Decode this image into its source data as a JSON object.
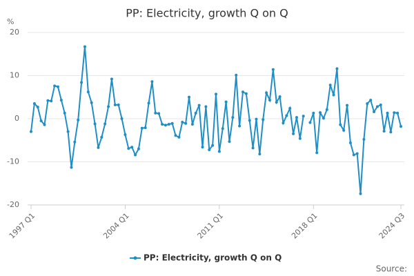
{
  "chart_data": {
    "type": "line",
    "title": "PP: Electricity, growth Q on Q",
    "y_label": "%",
    "source": "Source:",
    "categories": [
      "1997 Q1",
      null,
      null,
      null,
      null,
      null,
      null,
      null,
      null,
      null,
      null,
      null,
      null,
      null,
      null,
      null,
      null,
      null,
      null,
      null,
      null,
      null,
      null,
      null,
      null,
      null,
      null,
      null,
      "2004 Q1",
      null,
      null,
      null,
      null,
      null,
      null,
      null,
      null,
      null,
      null,
      null,
      null,
      null,
      null,
      null,
      null,
      null,
      null,
      null,
      null,
      null,
      null,
      null,
      null,
      null,
      null,
      null,
      "2011 Q1",
      null,
      null,
      null,
      null,
      null,
      null,
      null,
      null,
      null,
      null,
      null,
      null,
      null,
      null,
      null,
      null,
      null,
      null,
      null,
      null,
      null,
      null,
      null,
      null,
      null,
      null,
      null,
      "2018 Q1",
      null,
      null,
      null,
      null,
      null,
      null,
      null,
      null,
      null,
      null,
      null,
      null,
      null,
      null,
      null,
      null,
      null,
      null,
      null,
      null,
      null,
      null,
      null,
      null,
      null,
      "2024 Q3"
    ],
    "series": [
      {
        "name": "PP: Electricity, growth Q on Q",
        "color": "#1f8ec6",
        "values": [
          -3,
          3.5,
          2.7,
          -0.5,
          -1.4,
          4.2,
          4.1,
          7.6,
          7.4,
          4.3,
          1.3,
          -3,
          -11.3,
          -5.4,
          -0.3,
          8.4,
          16.7,
          6.2,
          3.7,
          -1.2,
          -6.7,
          -4.3,
          -1.2,
          2.8,
          9.2,
          3.2,
          3.2,
          0,
          -3.7,
          -6.9,
          -6.6,
          -8.4,
          -7,
          -2.2,
          -2.1,
          3.6,
          8.6,
          1.3,
          1.2,
          -1.3,
          -1.5,
          -1.3,
          -1.1,
          -3.9,
          -4.3,
          -0.8,
          -1.1,
          5,
          -1.3,
          1.3,
          3.1,
          -6.6,
          2.8,
          -7.2,
          -6.2,
          5.7,
          -7.6,
          -2.3,
          3.9,
          -5.3,
          0.3,
          10.1,
          -1.7,
          6.2,
          5.8,
          -0.4,
          -6.8,
          -0.1,
          -8.2,
          -0.2,
          6,
          4.3,
          11.4,
          3.8,
          5.1,
          -1,
          0.7,
          2.4,
          -3.5,
          0.3,
          -4.6,
          0.6,
          null,
          -0.9,
          1.3,
          -7.9,
          1.4,
          0.1,
          2.1,
          7.8,
          5.5,
          11.6,
          -1.4,
          -2.7,
          3.1,
          -5.6,
          -8.4,
          -8.1,
          -17.4,
          -4.8,
          3.5,
          4.3,
          1.6,
          2.8,
          3.2,
          -2.9,
          1.3,
          -3.1,
          1.4,
          1.3,
          -1.8
        ]
      }
    ],
    "ylim": [
      -20,
      20
    ],
    "yticks": [
      -20,
      -10,
      0,
      10,
      20
    ],
    "grid": true
  }
}
